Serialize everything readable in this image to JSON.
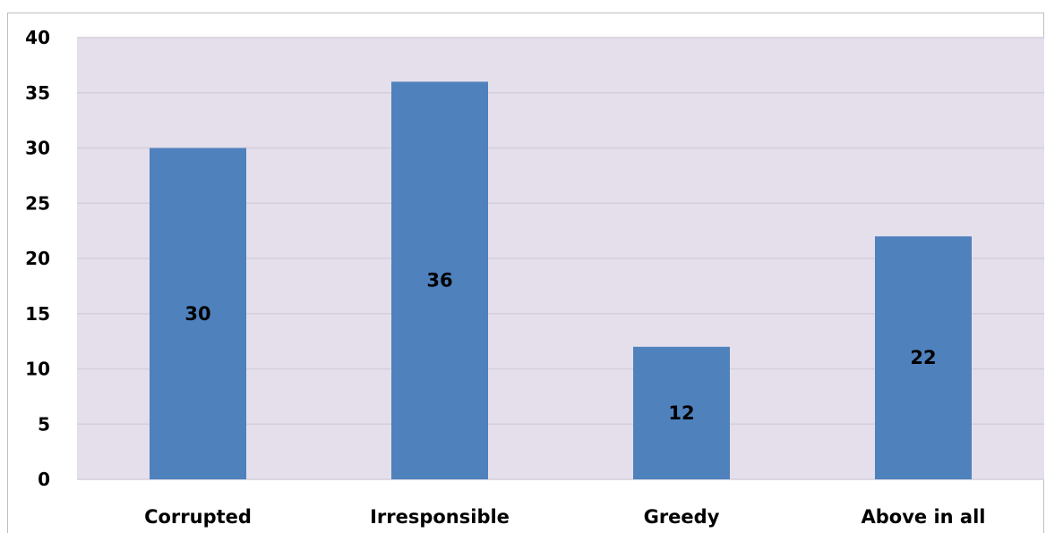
{
  "chart_data": {
    "type": "bar",
    "title": "",
    "xlabel": "",
    "ylabel": "",
    "categories": [
      "Corrupted",
      "Irresponsible",
      "Greedy",
      "Above in all"
    ],
    "values": [
      30,
      36,
      12,
      22
    ],
    "data_labels": [
      "30",
      "36",
      "12",
      "22"
    ],
    "ylim": [
      0,
      40
    ],
    "yticks": [
      0,
      5,
      10,
      15,
      20,
      25,
      30,
      35,
      40
    ],
    "grid": true,
    "legend": "none",
    "colors": {
      "bar": "#4f81bd",
      "plot_background": "#e5dfec",
      "gridline": "#d4cfdb"
    }
  }
}
